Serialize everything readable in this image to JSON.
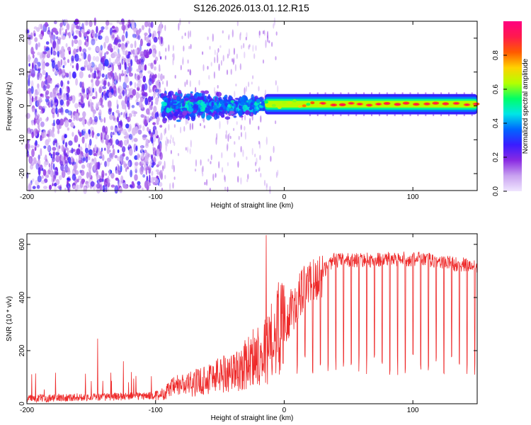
{
  "title": "S126.2026.013.01.12.R15",
  "chart_data": [
    {
      "type": "heatmap",
      "xlabel": "Height of straight line (km)",
      "ylabel": "Frequency (Hz)",
      "xlim": [
        -200,
        150
      ],
      "ylim": [
        -25,
        25
      ],
      "xticks": [
        -200,
        -100,
        0,
        100
      ],
      "yticks": [
        -20,
        -10,
        0,
        10,
        20
      ],
      "colorbar": {
        "label": "Normalized spectral amplitude",
        "range": [
          0.0,
          1.0
        ],
        "ticks": [
          "0.0",
          "0.2",
          "0.4",
          "0.6",
          "0.8"
        ],
        "colors": [
          "#f0e6ff",
          "#c9a2f0",
          "#8a2be2",
          "#3a1cff",
          "#0066ff",
          "#00e6e6",
          "#00ff66",
          "#b4ff00",
          "#ffd200",
          "#ff5a00",
          "#ff1a4d",
          "#ff0080"
        ]
      },
      "regions": [
        {
          "name": "noise",
          "x": [
            -200,
            -95
          ],
          "freq_spread": 25,
          "amplitude": [
            0.05,
            0.3
          ]
        },
        {
          "name": "transition",
          "x": [
            -95,
            -15
          ],
          "freq_spread": 6,
          "amplitude": [
            0.15,
            0.4
          ]
        },
        {
          "name": "carrier",
          "x": [
            -15,
            150
          ],
          "freq_center": 0.5,
          "freq_width": 1.5,
          "amplitude": [
            0.5,
            0.95
          ]
        }
      ]
    },
    {
      "type": "line",
      "xlabel": "Height of straight line (km)",
      "ylabel": "SNR (10 * v/v)",
      "xlim": [
        -200,
        150
      ],
      "ylim": [
        0,
        640
      ],
      "xticks": [
        -200,
        -100,
        0,
        100
      ],
      "yticks": [
        0,
        200,
        400,
        600
      ],
      "color": "#ee2a2a",
      "profile": [
        {
          "x": -200,
          "snr": 20
        },
        {
          "x": -150,
          "snr": 25
        },
        {
          "x": -100,
          "snr": 30
        },
        {
          "x": -80,
          "snr": 70
        },
        {
          "x": -40,
          "snr": 120
        },
        {
          "x": -15,
          "snr": 200
        },
        {
          "x": 0,
          "snr": 320
        },
        {
          "x": 20,
          "snr": 450
        },
        {
          "x": 40,
          "snr": 540
        },
        {
          "x": 100,
          "snr": 545
        },
        {
          "x": 150,
          "snr": 520
        }
      ],
      "spikes": [
        {
          "x": -145,
          "snr": 245
        },
        {
          "x": -125,
          "snr": 160
        },
        {
          "x": -14,
          "snr": 635
        }
      ],
      "dropouts": {
        "from_x": 10,
        "spacing_km": 6,
        "min_snr": 100
      }
    }
  ]
}
